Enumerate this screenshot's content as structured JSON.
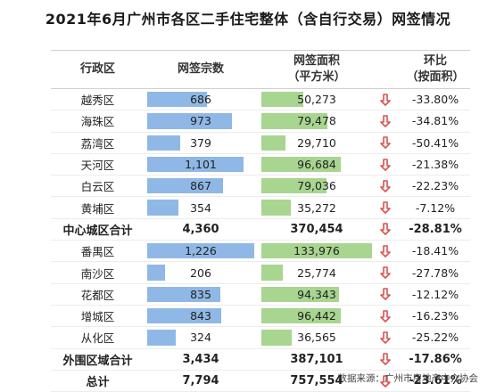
{
  "title": "2021年6月广州市各区二手住宅整体（含自行交易）网签情况",
  "headers": {
    "district": "行政区",
    "count": "网签宗数",
    "area_line1": "网签面积",
    "area_line2": "（平方米）",
    "change_line1": "环比",
    "change_line2": "（按面积）"
  },
  "colors": {
    "count_bar": "#8fb8e6",
    "area_bar": "#a8d58f",
    "down_arrow": "#d9534f"
  },
  "rows": [
    {
      "name": "越秀区",
      "count": "686",
      "area": "50,273",
      "change": "-33.80%",
      "count_value": 686,
      "area_value": 50273,
      "total": false
    },
    {
      "name": "海珠区",
      "count": "973",
      "area": "79,478",
      "change": "-34.81%",
      "count_value": 973,
      "area_value": 79478,
      "total": false
    },
    {
      "name": "荔湾区",
      "count": "379",
      "area": "29,710",
      "change": "-50.41%",
      "count_value": 379,
      "area_value": 29710,
      "total": false
    },
    {
      "name": "天河区",
      "count": "1,101",
      "area": "96,684",
      "change": "-21.38%",
      "count_value": 1101,
      "area_value": 96684,
      "total": false
    },
    {
      "name": "白云区",
      "count": "867",
      "area": "79,036",
      "change": "-22.23%",
      "count_value": 867,
      "area_value": 79036,
      "total": false
    },
    {
      "name": "黄埔区",
      "count": "354",
      "area": "35,272",
      "change": "-7.12%",
      "count_value": 354,
      "area_value": 35272,
      "total": false
    },
    {
      "name": "中心城区合计",
      "count": "4,360",
      "area": "370,454",
      "change": "-28.81%",
      "total": true
    },
    {
      "name": "番禺区",
      "count": "1,226",
      "area": "133,976",
      "change": "-18.41%",
      "count_value": 1226,
      "area_value": 133976,
      "total": false
    },
    {
      "name": "南沙区",
      "count": "206",
      "area": "25,774",
      "change": "-27.78%",
      "count_value": 206,
      "area_value": 25774,
      "total": false
    },
    {
      "name": "花都区",
      "count": "835",
      "area": "94,343",
      "change": "-12.12%",
      "count_value": 835,
      "area_value": 94343,
      "total": false
    },
    {
      "name": "增城区",
      "count": "843",
      "area": "96,442",
      "change": "-16.23%",
      "count_value": 843,
      "area_value": 96442,
      "total": false
    },
    {
      "name": "从化区",
      "count": "324",
      "area": "36,565",
      "change": "-25.22%",
      "count_value": 324,
      "area_value": 36565,
      "total": false
    },
    {
      "name": "外围区域合计",
      "count": "3,434",
      "area": "387,101",
      "change": "-17.86%",
      "total": true
    },
    {
      "name": "总计",
      "count": "7,794",
      "area": "757,554",
      "change": "-23.61%",
      "total": true
    }
  ],
  "source": "数据来源：广州市房地产中介协会"
}
